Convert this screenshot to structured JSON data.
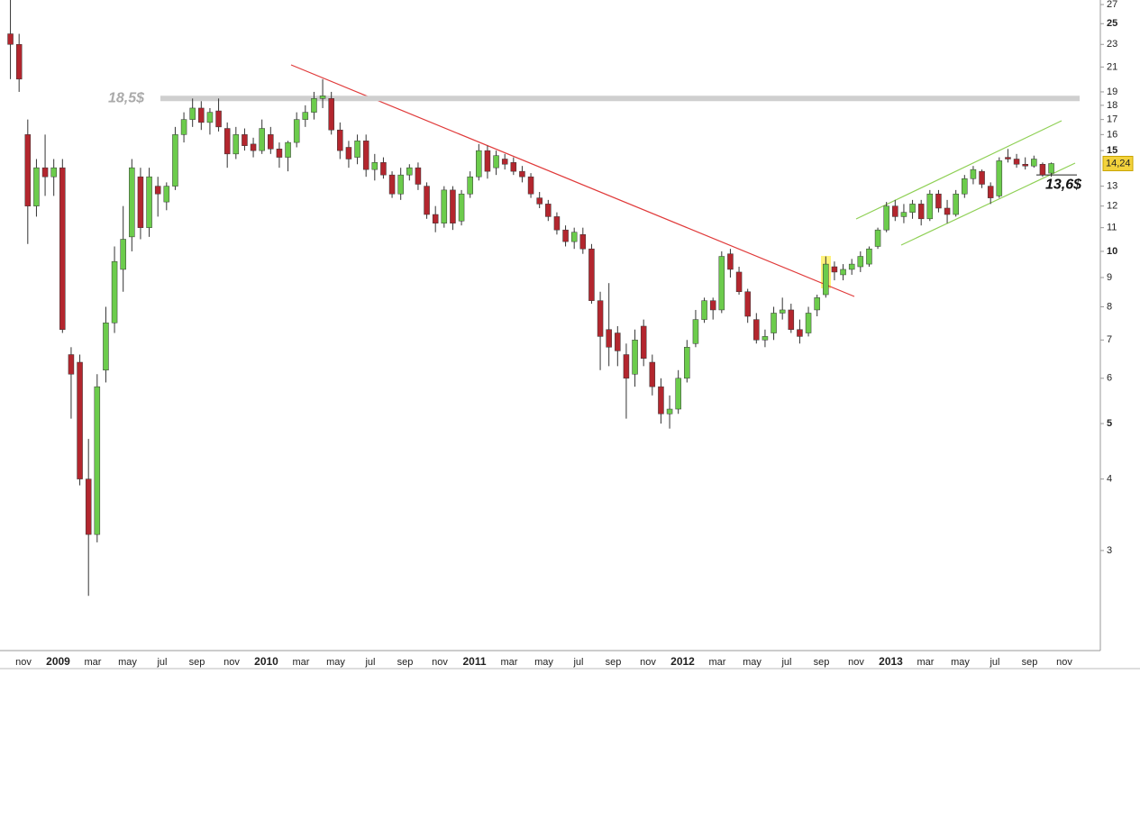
{
  "chart_data": {
    "type": "candlestick",
    "categories": [
      null,
      null,
      "nov",
      null,
      null,
      null,
      "2009",
      null,
      null,
      null,
      "mar",
      null,
      null,
      null,
      "may",
      null,
      null,
      null,
      "jul",
      null,
      null,
      null,
      "sep",
      null,
      null,
      null,
      "nov",
      null,
      null,
      null,
      "2010",
      null,
      null,
      null,
      "mar",
      null,
      null,
      null,
      "may",
      null,
      null,
      null,
      "jul",
      null,
      null,
      null,
      "sep",
      null,
      null,
      null,
      "nov",
      null,
      null,
      null,
      "2011",
      null,
      null,
      null,
      "mar",
      null,
      null,
      null,
      "may",
      null,
      null,
      null,
      "jul",
      null,
      null,
      null,
      "sep",
      null,
      null,
      null,
      "nov",
      null,
      null,
      null,
      "2012",
      null,
      null,
      null,
      "mar",
      null,
      null,
      null,
      "may",
      null,
      null,
      null,
      "jul",
      null,
      null,
      null,
      "sep",
      null,
      null,
      null,
      "nov",
      null,
      null,
      null,
      "2013",
      null,
      null,
      null,
      "mar",
      null,
      null,
      null,
      "may",
      null,
      null,
      null,
      "jul",
      null,
      null,
      null,
      "sep",
      null,
      null,
      null,
      "nov"
    ],
    "ohlc": [
      [
        24,
        28,
        20,
        23
      ],
      [
        23,
        24,
        19,
        20
      ],
      [
        16,
        17,
        10.3,
        12
      ],
      [
        12,
        14.5,
        11.5,
        14
      ],
      [
        14,
        16,
        12.5,
        13.5
      ],
      [
        13.5,
        14.5,
        12.5,
        14
      ],
      [
        14,
        14.5,
        7.2,
        7.3
      ],
      [
        6.6,
        6.8,
        5.1,
        6.1
      ],
      [
        6.4,
        6.6,
        3.9,
        4.0
      ],
      [
        4.0,
        4.7,
        2.5,
        3.2
      ],
      [
        3.2,
        6.1,
        3.1,
        5.8
      ],
      [
        6.2,
        8.0,
        5.9,
        7.5
      ],
      [
        7.5,
        10.2,
        7.2,
        9.6
      ],
      [
        9.3,
        12,
        8.5,
        10.5
      ],
      [
        10.6,
        14.5,
        10,
        14
      ],
      [
        13.5,
        14,
        10.5,
        11
      ],
      [
        11,
        14,
        10.6,
        13.5
      ],
      [
        13,
        13.5,
        11.5,
        12.6
      ],
      [
        12.2,
        13.2,
        11.8,
        13
      ],
      [
        13,
        16.5,
        12.8,
        16
      ],
      [
        16,
        17.5,
        15.5,
        17
      ],
      [
        17,
        18.5,
        16.5,
        17.8
      ],
      [
        17.8,
        18.3,
        16.3,
        16.8
      ],
      [
        16.8,
        17.8,
        16,
        17.5
      ],
      [
        17.6,
        18.5,
        16.2,
        16.5
      ],
      [
        16.4,
        16.8,
        14,
        14.8
      ],
      [
        14.8,
        16.5,
        14.5,
        16
      ],
      [
        16,
        16.4,
        15,
        15.3
      ],
      [
        15.4,
        15.8,
        14.6,
        15
      ],
      [
        15,
        17,
        14.8,
        16.4
      ],
      [
        16,
        16.5,
        14.8,
        15.1
      ],
      [
        15.1,
        15.5,
        14,
        14.6
      ],
      [
        14.6,
        15.6,
        13.8,
        15.5
      ],
      [
        15.5,
        17.5,
        15.2,
        17
      ],
      [
        17,
        18,
        16.5,
        17.5
      ],
      [
        17.5,
        19,
        17,
        18.5
      ],
      [
        18.5,
        20,
        17.8,
        18.7
      ],
      [
        18.5,
        19,
        16,
        16.3
      ],
      [
        16.3,
        16.8,
        14.5,
        15
      ],
      [
        15.2,
        15.6,
        14,
        14.5
      ],
      [
        14.6,
        16,
        14.2,
        15.6
      ],
      [
        15.6,
        16,
        13.5,
        13.9
      ],
      [
        13.9,
        14.8,
        13.3,
        14.3
      ],
      [
        14.3,
        14.6,
        13.4,
        13.6
      ],
      [
        13.6,
        13.8,
        12.4,
        12.6
      ],
      [
        12.6,
        14,
        12.3,
        13.6
      ],
      [
        13.6,
        14.2,
        13.3,
        14
      ],
      [
        14,
        14.3,
        12.8,
        13.1
      ],
      [
        13,
        13.2,
        11.4,
        11.6
      ],
      [
        11.6,
        12,
        10.8,
        11.2
      ],
      [
        11.2,
        13,
        11,
        12.8
      ],
      [
        12.8,
        13,
        10.9,
        11.2
      ],
      [
        11.3,
        12.8,
        11.1,
        12.6
      ],
      [
        12.6,
        13.8,
        12.4,
        13.5
      ],
      [
        13.5,
        15.4,
        13.3,
        15
      ],
      [
        15,
        15.3,
        13.4,
        13.8
      ],
      [
        14,
        15,
        13.6,
        14.7
      ],
      [
        14.5,
        14.8,
        13.9,
        14.2
      ],
      [
        14.3,
        14.6,
        13.6,
        13.8
      ],
      [
        13.8,
        14.1,
        13.2,
        13.5
      ],
      [
        13.5,
        13.7,
        12.4,
        12.6
      ],
      [
        12.4,
        12.7,
        11.9,
        12.1
      ],
      [
        12.1,
        12.3,
        11.3,
        11.5
      ],
      [
        11.5,
        11.7,
        10.7,
        10.9
      ],
      [
        10.9,
        11.1,
        10.2,
        10.4
      ],
      [
        10.4,
        11,
        10.1,
        10.8
      ],
      [
        10.7,
        11,
        9.9,
        10.1
      ],
      [
        10.1,
        10.3,
        8.1,
        8.2
      ],
      [
        8.2,
        8.5,
        6.2,
        7.1
      ],
      [
        7.3,
        8.8,
        6.3,
        6.8
      ],
      [
        7.2,
        7.4,
        6.3,
        6.7
      ],
      [
        6.6,
        6.9,
        5.1,
        6.0
      ],
      [
        6.1,
        7.3,
        5.8,
        7.0
      ],
      [
        7.4,
        7.6,
        6.3,
        6.5
      ],
      [
        6.4,
        6.6,
        5.6,
        5.8
      ],
      [
        5.8,
        6.0,
        5.0,
        5.2
      ],
      [
        5.2,
        5.6,
        4.9,
        5.3
      ],
      [
        5.3,
        6.2,
        5.2,
        6.0
      ],
      [
        6.0,
        7.0,
        5.9,
        6.8
      ],
      [
        6.9,
        7.9,
        6.8,
        7.6
      ],
      [
        7.6,
        8.3,
        7.5,
        8.2
      ],
      [
        8.2,
        8.3,
        7.6,
        7.9
      ],
      [
        7.9,
        10,
        7.8,
        9.8
      ],
      [
        9.9,
        10.1,
        9,
        9.3
      ],
      [
        9.2,
        9.4,
        8.4,
        8.5
      ],
      [
        8.5,
        8.6,
        7.5,
        7.7
      ],
      [
        7.6,
        7.8,
        6.9,
        7
      ],
      [
        7,
        7.3,
        6.8,
        7.1
      ],
      [
        7.2,
        8,
        7,
        7.8
      ],
      [
        7.8,
        8.3,
        7.6,
        7.9
      ],
      [
        7.9,
        8.1,
        7.2,
        7.3
      ],
      [
        7.3,
        7.6,
        6.9,
        7.1
      ],
      [
        7.2,
        8,
        7.1,
        7.8
      ],
      [
        7.9,
        8.4,
        7.7,
        8.3
      ],
      [
        8.4,
        9.8,
        8.3,
        9.5
      ],
      [
        9.4,
        9.6,
        8.9,
        9.2
      ],
      [
        9.1,
        9.5,
        8.9,
        9.3
      ],
      [
        9.3,
        9.7,
        9.1,
        9.5
      ],
      [
        9.4,
        10,
        9.2,
        9.8
      ],
      [
        9.5,
        10.2,
        9.4,
        10.1
      ],
      [
        10.2,
        11,
        10.1,
        10.9
      ],
      [
        10.9,
        12.2,
        10.8,
        12
      ],
      [
        12,
        12.3,
        11.3,
        11.5
      ],
      [
        11.5,
        12.1,
        11.2,
        11.7
      ],
      [
        11.7,
        12.3,
        11.4,
        12.1
      ],
      [
        12.1,
        12.3,
        11.1,
        11.4
      ],
      [
        11.4,
        12.8,
        11.3,
        12.6
      ],
      [
        12.6,
        12.8,
        11.7,
        11.9
      ],
      [
        11.9,
        12.3,
        11.2,
        11.6
      ],
      [
        11.6,
        12.8,
        11.5,
        12.6
      ],
      [
        12.6,
        13.6,
        12.4,
        13.4
      ],
      [
        13.4,
        14.1,
        13.1,
        13.9
      ],
      [
        13.8,
        13.9,
        12.9,
        13.1
      ],
      [
        13,
        13.2,
        12.1,
        12.4
      ],
      [
        12.5,
        14.6,
        12.4,
        14.4
      ],
      [
        14.6,
        15.1,
        14.3,
        14.5
      ],
      [
        14.5,
        14.8,
        14,
        14.2
      ],
      [
        14.2,
        14.6,
        13.9,
        14.1
      ],
      [
        14.1,
        14.7,
        14,
        14.5
      ],
      [
        14.2,
        14.3,
        13.5,
        13.6
      ],
      [
        13.7,
        14.3,
        13.5,
        14.24
      ],
      null,
      null
    ],
    "up_color": "#6ccc4c",
    "down_color": "#b3262e",
    "log_scale": true,
    "ylim": [
      2.02,
      27.5
    ],
    "yticks": [
      3,
      4,
      5,
      6,
      7,
      8,
      9,
      10,
      11,
      12,
      13,
      15,
      16,
      17,
      18,
      19,
      21,
      23,
      25,
      27
    ],
    "last_price": {
      "value": 14.24,
      "label": "14,24"
    },
    "annotations": [
      {
        "value": 18.5,
        "label": "18,5$"
      },
      {
        "value": 13.6,
        "label": "13,6$"
      }
    ]
  }
}
